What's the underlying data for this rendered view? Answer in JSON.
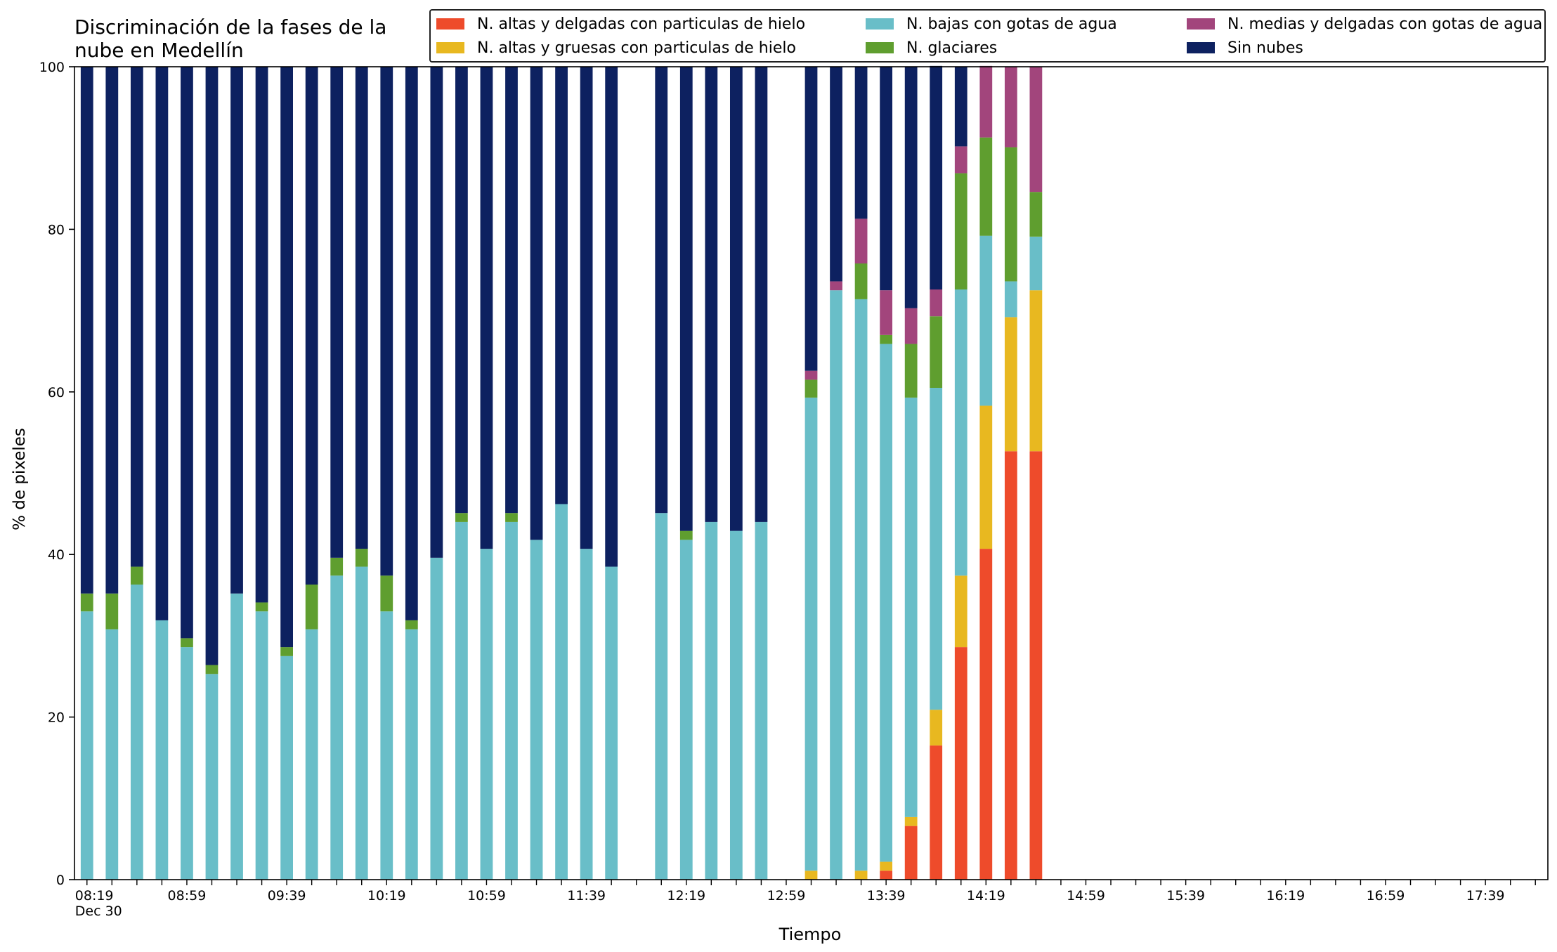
{
  "chart_data": {
    "type": "bar",
    "stacked": true,
    "title": "Discriminación de la fases de la\nnube en Medellín",
    "xlabel": "Tiempo",
    "ylabel": "% de pixeles",
    "ylim": [
      0,
      100
    ],
    "yticks": [
      0,
      20,
      40,
      60,
      80,
      100
    ],
    "x_ticks": [
      "08:19\nDec 30",
      "08:59",
      "09:39",
      "10:19",
      "10:59",
      "11:39",
      "12:19",
      "12:59",
      "13:39",
      "14:19",
      "14:59",
      "15:39",
      "16:19",
      "16:59",
      "17:39"
    ],
    "x_slots": 59,
    "legend_position": "top-right",
    "x": [
      "08:19",
      "08:29",
      "08:39",
      "08:49",
      "08:59",
      "09:09",
      "09:19",
      "09:29",
      "09:39",
      "09:49",
      "09:59",
      "10:09",
      "10:19",
      "10:29",
      "10:39",
      "10:49",
      "10:59",
      "11:09",
      "11:19",
      "11:29",
      "11:39",
      "11:49",
      "12:09",
      "12:19",
      "12:29",
      "12:39",
      "12:49",
      "13:09",
      "13:19",
      "13:29",
      "13:39",
      "13:49",
      "13:59",
      "14:09",
      "14:19",
      "14:29",
      "14:39"
    ],
    "series": [
      {
        "name": "N. altas y delgadas con particulas de hielo",
        "color": "#ee4b2b",
        "values": [
          0,
          0,
          0,
          0,
          0,
          0,
          0,
          0,
          0,
          0,
          0,
          0,
          0,
          0,
          0,
          0,
          0,
          0,
          0,
          0,
          0,
          0,
          0,
          0,
          0,
          0,
          0,
          0,
          0,
          0,
          1.1,
          6.6,
          16.5,
          28.6,
          40.7,
          52.7,
          52.7
        ]
      },
      {
        "name": "N. altas y gruesas con particulas de hielo",
        "color": "#e8b820",
        "values": [
          0,
          0,
          0,
          0,
          0,
          0,
          0,
          0,
          0,
          0,
          0,
          0,
          0,
          0,
          0,
          0,
          0,
          0,
          0,
          0,
          0,
          0,
          0,
          0,
          0,
          0,
          0,
          1.1,
          0,
          1.1,
          1.1,
          1.1,
          4.4,
          8.8,
          17.6,
          16.5,
          19.8
        ]
      },
      {
        "name": "N. bajas con gotas de agua",
        "color": "#69bec8",
        "values": [
          33.0,
          30.8,
          36.3,
          31.9,
          28.6,
          25.3,
          35.2,
          33.0,
          27.5,
          30.8,
          37.4,
          38.5,
          33.0,
          30.8,
          39.6,
          44.0,
          40.7,
          44.0,
          41.8,
          46.2,
          40.7,
          38.5,
          45.1,
          41.8,
          44.0,
          42.9,
          44.0,
          58.2,
          72.5,
          70.3,
          63.7,
          51.6,
          39.6,
          35.2,
          20.9,
          4.4,
          6.6
        ]
      },
      {
        "name": "N. glaciares",
        "color": "#5f9e2f",
        "values": [
          2.2,
          4.4,
          2.2,
          0,
          1.1,
          1.1,
          0,
          1.1,
          1.1,
          5.5,
          2.2,
          2.2,
          4.4,
          1.1,
          0,
          1.1,
          0,
          1.1,
          0,
          0,
          0,
          0,
          0,
          1.1,
          0,
          0,
          0,
          2.2,
          0,
          4.4,
          1.1,
          6.6,
          8.8,
          14.3,
          12.1,
          16.5,
          5.5
        ]
      },
      {
        "name": "N. medias y delgadas con gotas de agua",
        "color": "#a2457c",
        "values": [
          0,
          0,
          0,
          0,
          0,
          0,
          0,
          0,
          0,
          0,
          0,
          0,
          0,
          0,
          0,
          0,
          0,
          0,
          0,
          0,
          0,
          0,
          0,
          0,
          0,
          0,
          0,
          1.1,
          1.1,
          5.5,
          5.5,
          4.4,
          3.3,
          3.3,
          8.8,
          9.9,
          15.4
        ]
      },
      {
        "name": "Sin nubes",
        "color": "#0d2160",
        "values": [
          64.8,
          64.8,
          61.5,
          68.1,
          70.3,
          73.6,
          64.8,
          65.9,
          71.4,
          63.7,
          60.4,
          59.3,
          62.6,
          68.1,
          60.4,
          54.9,
          59.3,
          54.9,
          58.2,
          53.8,
          59.3,
          61.5,
          54.9,
          57.1,
          56.0,
          57.1,
          56.0,
          37.4,
          26.4,
          18.7,
          27.5,
          29.7,
          27.5,
          9.8,
          0,
          0,
          0
        ]
      }
    ]
  }
}
